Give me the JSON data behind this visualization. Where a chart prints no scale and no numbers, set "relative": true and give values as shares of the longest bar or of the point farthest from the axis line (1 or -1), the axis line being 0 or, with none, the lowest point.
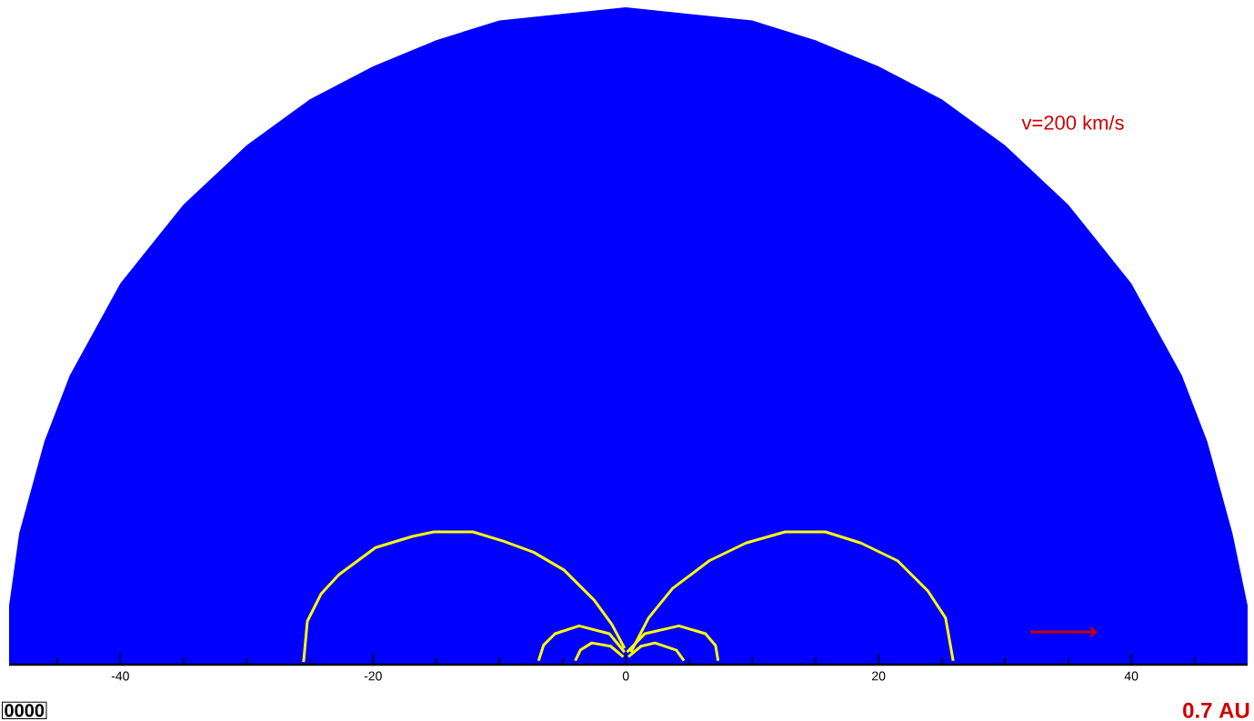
{
  "chart_data": {
    "type": "line",
    "relative": true,
    "xlim": [
      -48.8,
      49.2
    ],
    "xticks": [
      {
        "value": -45,
        "label": null
      },
      -40,
      {
        "value": -35,
        "label": null
      },
      {
        "value": -30,
        "label": null
      },
      {
        "value": -25,
        "label": null
      },
      -20,
      {
        "value": -15,
        "label": null
      },
      {
        "value": -10,
        "label": null
      },
      {
        "value": -5,
        "label": null
      },
      0,
      {
        "value": 5,
        "label": null
      },
      {
        "value": 10,
        "label": null
      },
      {
        "value": 15,
        "label": null
      },
      20,
      {
        "value": 25,
        "label": null
      },
      {
        "value": 30,
        "label": null
      },
      {
        "value": 35,
        "label": null
      },
      40,
      {
        "value": 45,
        "label": null
      }
    ],
    "series": [
      {
        "type": "area",
        "color": "#0000ff",
        "x": [
          -48.8,
          -48.8,
          -48,
          -46,
          -44,
          -40,
          -35,
          -30,
          -25,
          -20,
          -15,
          -10,
          -5,
          0,
          5,
          10,
          15,
          20,
          25,
          30,
          35,
          40,
          44,
          46,
          48,
          49.2,
          49.2
        ],
        "values": [
          0,
          0.09,
          0.2,
          0.34,
          0.44,
          0.58,
          0.7,
          0.79,
          0.86,
          0.91,
          0.95,
          0.98,
          0.99,
          1,
          0.99,
          0.98,
          0.95,
          0.91,
          0.86,
          0.79,
          0.7,
          0.58,
          0.44,
          0.34,
          0.2,
          0.09,
          0
        ]
      },
      {
        "color": "#ffff00",
        "x": [
          -25.5,
          -25.2,
          -24.1,
          -22.7,
          -19.8,
          -16.9,
          -15.2,
          -12.1,
          -9.7,
          -7.3,
          -4.9,
          -2.5,
          -1.1,
          -0.1
        ],
        "values": [
          0.004,
          0.066,
          0.108,
          0.137,
          0.178,
          0.195,
          0.202,
          0.202,
          0.188,
          0.171,
          0.144,
          0.098,
          0.061,
          0.025
        ]
      },
      {
        "color": "#ffff00",
        "x": [
          0.4,
          1.8,
          3.7,
          6.6,
          9.5,
          12.6,
          15.8,
          18.6,
          21.5,
          23.9,
          25.3,
          25.9
        ],
        "values": [
          0.019,
          0.071,
          0.116,
          0.158,
          0.185,
          0.202,
          0.202,
          0.185,
          0.158,
          0.112,
          0.071,
          0.006
        ]
      },
      {
        "color": "#ffff00",
        "x": [
          -6.9,
          -6.5,
          -5.6,
          -3.7,
          -1.3,
          -0.1
        ],
        "values": [
          0.006,
          0.03,
          0.047,
          0.059,
          0.047,
          0.019
        ]
      },
      {
        "color": "#ffff00",
        "x": [
          0.1,
          1.5,
          4.2,
          6.3,
          7.1,
          7.3
        ],
        "values": [
          0.019,
          0.047,
          0.059,
          0.047,
          0.029,
          0.006
        ]
      },
      {
        "color": "#ffff00",
        "x": [
          -4.0,
          -3.6,
          -2.7,
          -1.2,
          -0.2
        ],
        "values": [
          0.006,
          0.022,
          0.033,
          0.028,
          0.012
        ]
      },
      {
        "color": "#ffff00",
        "x": [
          0.2,
          1.2,
          2.3,
          4.0,
          4.6
        ],
        "values": [
          0.012,
          0.028,
          0.033,
          0.022,
          0.006
        ]
      }
    ],
    "annotations": [
      "v=200 km/s",
      "0.7 AU",
      "0000"
    ]
  }
}
